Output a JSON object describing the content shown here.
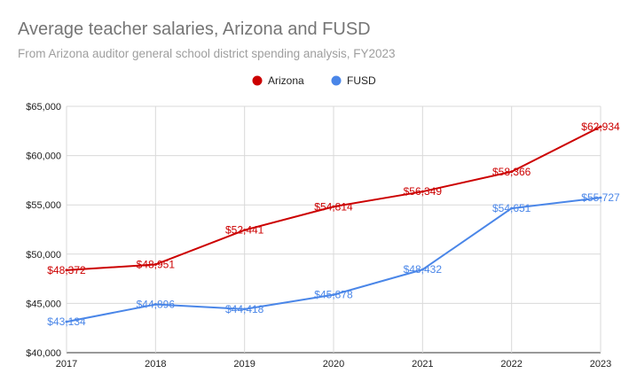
{
  "chart_data": {
    "type": "line",
    "title": "Average teacher salaries, Arizona and FUSD",
    "subtitle": "From Arizona auditor general school district spending analysis, FY2023",
    "x": [
      "2017",
      "2018",
      "2019",
      "2020",
      "2021",
      "2022",
      "2023"
    ],
    "ylim": [
      40000,
      65000
    ],
    "yticks": [
      40000,
      45000,
      50000,
      55000,
      60000,
      65000
    ],
    "ytick_labels": [
      "$40,000",
      "$45,000",
      "$50,000",
      "$55,000",
      "$60,000",
      "$65,000"
    ],
    "grid": true,
    "legend_position": "top-center",
    "series": [
      {
        "name": "Arizona",
        "color": "#cc0000",
        "values": [
          48372,
          48951,
          52441,
          54814,
          56349,
          58366,
          62934
        ],
        "labels": [
          "$48,372",
          "$48,951",
          "$52,441",
          "$54,814",
          "$56,349",
          "$58,366",
          "$62,934"
        ]
      },
      {
        "name": "FUSD",
        "color": "#4a86e8",
        "values": [
          43134,
          44896,
          44418,
          45878,
          48432,
          54651,
          55727
        ],
        "labels": [
          "$43,134",
          "$44,896",
          "$44,418",
          "$45,878",
          "$48,432",
          "$54,651",
          "$55,727"
        ]
      }
    ]
  }
}
